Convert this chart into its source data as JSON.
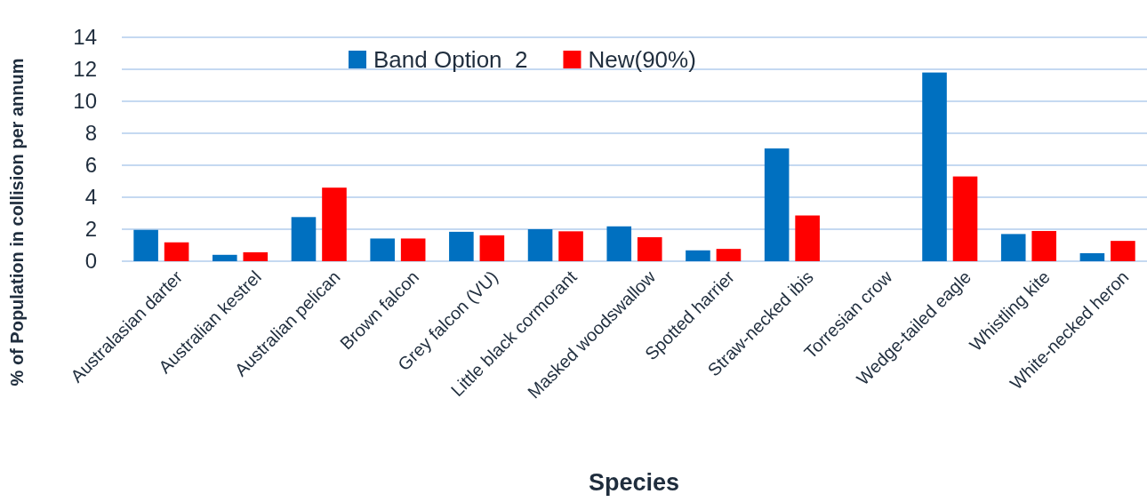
{
  "chart_data": {
    "type": "bar",
    "xlabel": "Species",
    "ylabel": "% of Population in collision per annum",
    "categories": [
      "Australasian darter",
      "Australian kestrel",
      "Australian pelican",
      "Brown falcon",
      "Grey falcon (VU)",
      "Little black cormorant",
      "Masked woodswallow",
      "Spotted harrier",
      "Straw-necked ibis",
      "Torresian crow",
      "Wedge-tailed eagle",
      "Whistling kite",
      "White-necked heron"
    ],
    "series": [
      {
        "name": "Band Option  2",
        "color": "#0070c0",
        "values": [
          1.96,
          0.4,
          2.76,
          1.42,
          1.84,
          2.0,
          2.18,
          0.68,
          7.05,
          0,
          11.8,
          1.7,
          0.5
        ]
      },
      {
        "name": "New(90%)",
        "color": "#ff0000",
        "values": [
          1.18,
          0.56,
          4.6,
          1.42,
          1.62,
          1.87,
          1.5,
          0.77,
          2.86,
          0,
          5.3,
          1.89,
          1.27
        ]
      }
    ],
    "ylim": [
      0,
      14
    ],
    "yticks": [
      0,
      2,
      4,
      6,
      8,
      10,
      12,
      14
    ],
    "grid": "y",
    "legend": "top"
  }
}
